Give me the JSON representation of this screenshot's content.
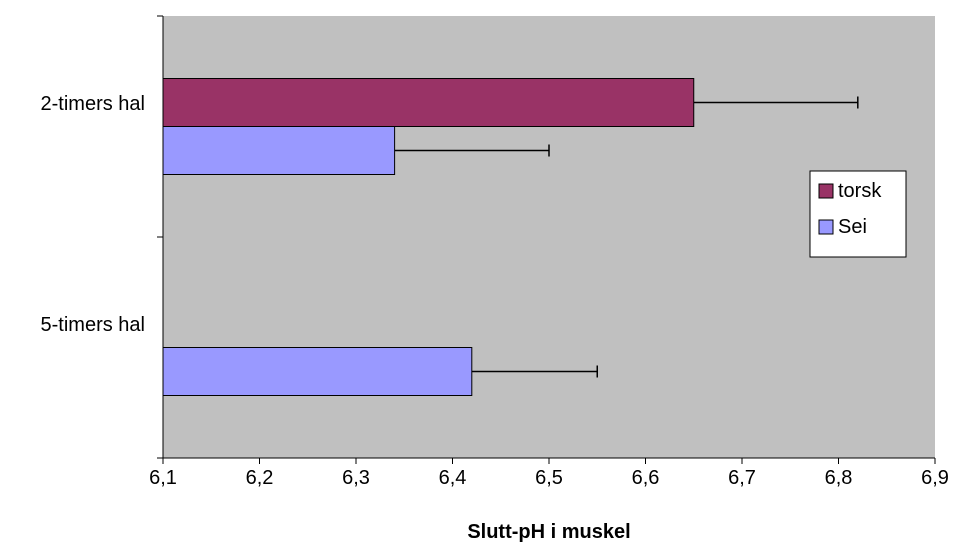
{
  "chart_data": {
    "type": "bar",
    "orientation": "horizontal",
    "categories": [
      "2-timers hal",
      "5-timers hal"
    ],
    "series": [
      {
        "name": "torsk",
        "color": "#993366",
        "values": [
          6.65,
          null
        ],
        "error": [
          0.17,
          null
        ]
      },
      {
        "name": "Sei",
        "color": "#9999ff",
        "values": [
          6.34,
          6.42
        ],
        "error": [
          0.16,
          0.13
        ]
      }
    ],
    "xlabel": "Slutt-pH i muskel",
    "ylabel": "",
    "title": "",
    "xlim": [
      6.1,
      6.9
    ],
    "xticks": [
      "6,1",
      "6,2",
      "6,3",
      "6,4",
      "6,5",
      "6,6",
      "6,7",
      "6,8",
      "6,9"
    ],
    "grid": false,
    "legend_position": "right",
    "plot_background": "#c0c0c0"
  }
}
